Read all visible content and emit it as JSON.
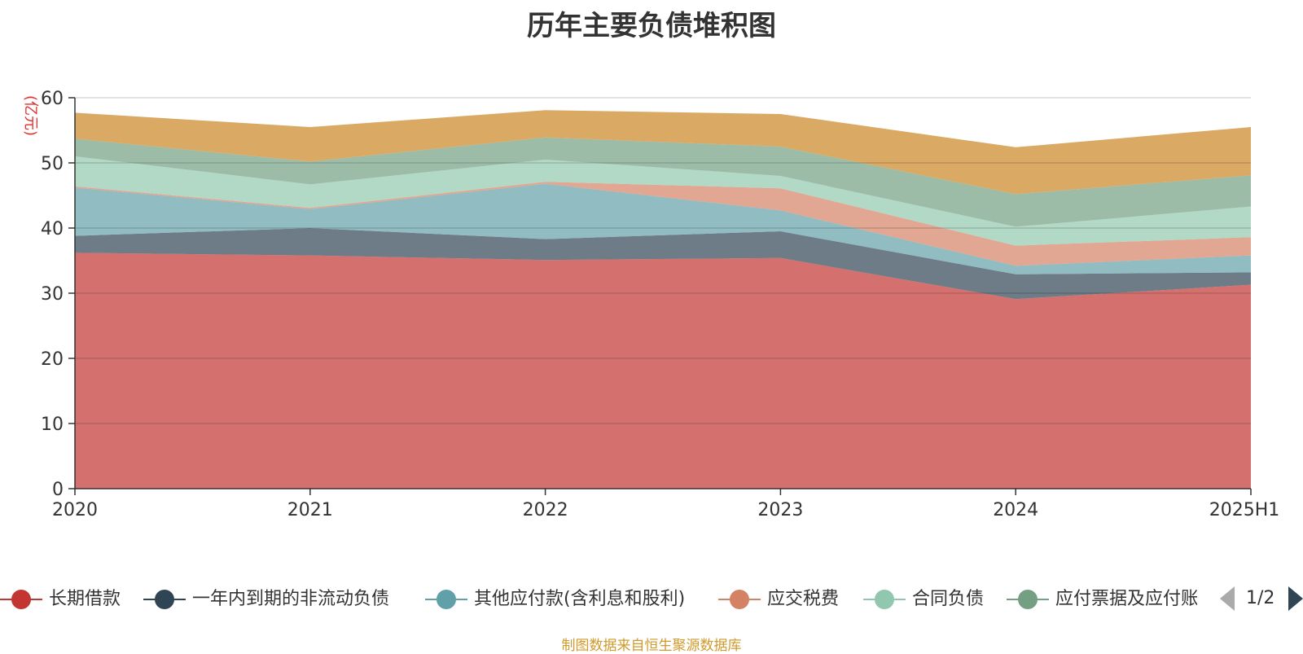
{
  "chart_data": {
    "type": "area",
    "stacked": true,
    "title": "历年主要负债堆积图",
    "ylabel": "(亿元)",
    "xlabel": "",
    "ylim": [
      0,
      60
    ],
    "yticks": [
      "0",
      "10",
      "20",
      "30",
      "40",
      "50",
      "60"
    ],
    "categories": [
      "2020",
      "2021",
      "2022",
      "2023",
      "2024",
      "2025H1"
    ],
    "grid": true,
    "legend_position": "bottom",
    "series": [
      {
        "name": "长期借款",
        "color": "#c23531",
        "values": [
          36.2,
          35.8,
          35.1,
          35.4,
          29.1,
          31.3
        ]
      },
      {
        "name": "一年内到期的非流动负债",
        "color": "#2f4554",
        "values": [
          2.6,
          4.2,
          3.2,
          4.1,
          3.8,
          1.9
        ]
      },
      {
        "name": "其他应付款(含利息和股利)",
        "color": "#61a0a8",
        "values": [
          7.4,
          2.9,
          8.5,
          3.2,
          1.3,
          2.6
        ]
      },
      {
        "name": "应交税费",
        "color": "#d48265",
        "values": [
          0.2,
          0.2,
          0.3,
          3.4,
          3.1,
          2.8
        ]
      },
      {
        "name": "合同负债",
        "color": "#91c7ae",
        "values": [
          4.6,
          3.6,
          3.4,
          1.9,
          2.9,
          4.7
        ]
      },
      {
        "name": "应付票据及应付账款",
        "color": "#749f83",
        "values": [
          2.7,
          3.5,
          3.4,
          4.5,
          5.0,
          4.8
        ]
      },
      {
        "name": "",
        "color": "#ca8622",
        "values": [
          4.0,
          5.3,
          4.2,
          5.0,
          7.2,
          7.4
        ]
      }
    ]
  },
  "legend": {
    "page": "1/2"
  },
  "source_note": "制图数据来自恒生聚源数据库"
}
